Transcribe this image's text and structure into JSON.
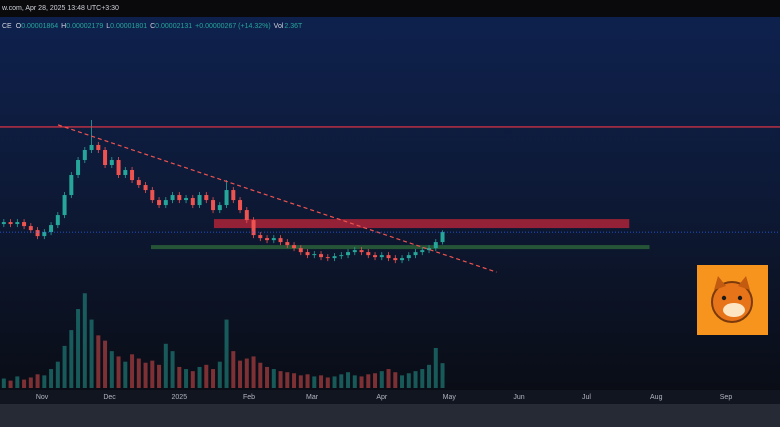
{
  "chart_data": {
    "type": "candlestick",
    "header": {
      "source": "w.com, Apr 28, 2025 13:48 UTC+3:30",
      "symbol": "CE",
      "items": [
        {
          "key": "O",
          "value": "0.00001864"
        },
        {
          "key": "H",
          "value": "0.00002179"
        },
        {
          "key": "L",
          "value": "0.00001801"
        },
        {
          "key": "C",
          "value": "0.00002131"
        }
      ],
      "change": "+0.00000267 (+14.32%)",
      "volume": {
        "key": "Vol",
        "value": "2.36T"
      }
    },
    "x": [
      -17,
      -14,
      -11,
      -8,
      -5,
      -2,
      1,
      4,
      7,
      10,
      13,
      16,
      19,
      22,
      25,
      28,
      31,
      34,
      37,
      40,
      43,
      46,
      49,
      52,
      55,
      58,
      61,
      64,
      67,
      70,
      73,
      76,
      79,
      82,
      85,
      88,
      91,
      94,
      97,
      100,
      103,
      106,
      109,
      112,
      115,
      118,
      121,
      124,
      127,
      130,
      133,
      136,
      139,
      142,
      145,
      148,
      151,
      154,
      157,
      160,
      163,
      166,
      169,
      172,
      175,
      178
    ],
    "open": [
      2.345e-05,
      2.398e-05,
      2.345e-05,
      2.398e-05,
      2.291e-05,
      2.184e-05,
      2.024e-05,
      2.131e-05,
      2.318e-05,
      2.585e-05,
      3.119e-05,
      3.653e-05,
      4.053e-05,
      4.32e-05,
      4.454e-05,
      4.32e-05,
      3.92e-05,
      4.053e-05,
      3.653e-05,
      3.786e-05,
      3.519e-05,
      3.386e-05,
      3.252e-05,
      2.985e-05,
      2.852e-05,
      2.985e-05,
      3.119e-05,
      2.985e-05,
      3.039e-05,
      2.852e-05,
      3.119e-05,
      2.985e-05,
      2.718e-05,
      2.852e-05,
      3.252e-05,
      2.985e-05,
      2.718e-05,
      2.451e-05,
      2.051e-05,
      1.971e-05,
      1.917e-05,
      1.971e-05,
      1.864e-05,
      1.784e-05,
      1.704e-05,
      1.597e-05,
      1.517e-05,
      1.544e-05,
      1.463e-05,
      1.437e-05,
      1.49e-05,
      1.517e-05,
      1.597e-05,
      1.65e-05,
      1.597e-05,
      1.517e-05,
      1.463e-05,
      1.517e-05,
      1.437e-05,
      1.383e-05,
      1.437e-05,
      1.517e-05,
      1.597e-05,
      1.65e-05,
      1.704e-05,
      1.864e-05
    ],
    "high": [
      2.478e-05,
      2.478e-05,
      2.478e-05,
      2.478e-05,
      2.371e-05,
      2.264e-05,
      2.211e-05,
      2.398e-05,
      2.665e-05,
      3.199e-05,
      3.733e-05,
      4.133e-05,
      4.4e-05,
      5.121e-05,
      4.534e-05,
      4.4e-05,
      4.133e-05,
      4.133e-05,
      3.866e-05,
      3.866e-05,
      3.599e-05,
      3.466e-05,
      3.332e-05,
      3.065e-05,
      3.065e-05,
      3.199e-05,
      3.199e-05,
      3.119e-05,
      3.119e-05,
      3.199e-05,
      3.199e-05,
      3.065e-05,
      2.932e-05,
      3.519e-05,
      3.332e-05,
      3.065e-05,
      2.798e-05,
      2.531e-05,
      2.131e-05,
      2.051e-05,
      2.051e-05,
      2.051e-05,
      1.944e-05,
      1.864e-05,
      1.784e-05,
      1.677e-05,
      1.624e-05,
      1.624e-05,
      1.543e-05,
      1.57e-05,
      1.597e-05,
      1.677e-05,
      1.73e-05,
      1.73e-05,
      1.677e-05,
      1.597e-05,
      1.597e-05,
      1.597e-05,
      1.517e-05,
      1.517e-05,
      1.597e-05,
      1.677e-05,
      1.73e-05,
      1.784e-05,
      1.944e-05,
      2.179e-05
    ],
    "low": [
      2.265e-05,
      2.265e-05,
      2.265e-05,
      2.211e-05,
      2.104e-05,
      1.944e-05,
      1.944e-05,
      2.051e-05,
      2.238e-05,
      2.505e-05,
      3.039e-05,
      3.573e-05,
      3.973e-05,
      4.24e-05,
      4.24e-05,
      3.84e-05,
      3.84e-05,
      3.573e-05,
      3.573e-05,
      3.439e-05,
      3.306e-05,
      3.172e-05,
      2.905e-05,
      2.772e-05,
      2.772e-05,
      2.905e-05,
      2.905e-05,
      2.905e-05,
      2.772e-05,
      2.772e-05,
      2.905e-05,
      2.638e-05,
      2.638e-05,
      2.772e-05,
      2.905e-05,
      2.638e-05,
      2.371e-05,
      1.971e-05,
      1.891e-05,
      1.837e-05,
      1.837e-05,
      1.784e-05,
      1.704e-05,
      1.624e-05,
      1.517e-05,
      1.437e-05,
      1.437e-05,
      1.383e-05,
      1.357e-05,
      1.357e-05,
      1.41e-05,
      1.437e-05,
      1.517e-05,
      1.517e-05,
      1.437e-05,
      1.383e-05,
      1.383e-05,
      1.357e-05,
      1.303e-05,
      1.303e-05,
      1.357e-05,
      1.437e-05,
      1.517e-05,
      1.57e-05,
      1.624e-05,
      1.801e-05
    ],
    "close": [
      2.398e-05,
      2.345e-05,
      2.398e-05,
      2.291e-05,
      2.184e-05,
      2.024e-05,
      2.131e-05,
      2.318e-05,
      2.585e-05,
      3.119e-05,
      3.653e-05,
      4.053e-05,
      4.32e-05,
      4.454e-05,
      4.32e-05,
      3.92e-05,
      4.053e-05,
      3.653e-05,
      3.786e-05,
      3.519e-05,
      3.386e-05,
      3.252e-05,
      2.985e-05,
      2.852e-05,
      2.985e-05,
      3.119e-05,
      2.985e-05,
      3.039e-05,
      2.852e-05,
      3.119e-05,
      2.985e-05,
      2.718e-05,
      2.852e-05,
      3.252e-05,
      2.985e-05,
      2.718e-05,
      2.451e-05,
      2.051e-05,
      1.971e-05,
      1.917e-05,
      1.971e-05,
      1.864e-05,
      1.784e-05,
      1.704e-05,
      1.597e-05,
      1.517e-05,
      1.544e-05,
      1.463e-05,
      1.437e-05,
      1.49e-05,
      1.517e-05,
      1.597e-05,
      1.65e-05,
      1.597e-05,
      1.517e-05,
      1.463e-05,
      1.517e-05,
      1.437e-05,
      1.383e-05,
      1.437e-05,
      1.517e-05,
      1.597e-05,
      1.65e-05,
      1.704e-05,
      1.864e-05,
      2.131e-05
    ],
    "volume": [
      0.9,
      0.7,
      1.1,
      0.8,
      1.0,
      1.3,
      1.2,
      1.8,
      2.5,
      4.0,
      5.5,
      7.5,
      9.0,
      6.5,
      5.0,
      4.5,
      3.5,
      3.0,
      2.5,
      3.2,
      2.8,
      2.4,
      2.6,
      2.2,
      4.2,
      3.5,
      2.0,
      1.8,
      1.6,
      2.0,
      2.2,
      1.8,
      2.5,
      6.5,
      3.5,
      2.6,
      2.8,
      3.0,
      2.4,
      2.0,
      1.8,
      1.6,
      1.5,
      1.4,
      1.2,
      1.3,
      1.1,
      1.2,
      1.0,
      1.1,
      1.3,
      1.5,
      1.2,
      1.1,
      1.3,
      1.4,
      1.6,
      1.8,
      1.5,
      1.2,
      1.4,
      1.6,
      1.8,
      2.2,
      3.8,
      2.36
    ],
    "up_color": "#26a69a",
    "down_color": "#ef5350",
    "xlim": [
      -18.7,
      328
    ],
    "ylim": [
      4e-06,
      8e-05
    ],
    "vlim": [
      0,
      9.5
    ],
    "xticks": [
      {
        "value": 0,
        "label": "Nov"
      },
      {
        "value": 30,
        "label": "Dec"
      },
      {
        "value": 61,
        "label": "2025"
      },
      {
        "value": 92,
        "label": "Feb"
      },
      {
        "value": 120,
        "label": "Mar"
      },
      {
        "value": 151,
        "label": "Apr"
      },
      {
        "value": 181,
        "label": "May"
      },
      {
        "value": 212,
        "label": "Jun"
      },
      {
        "value": 242,
        "label": "Jul"
      },
      {
        "value": 273,
        "label": "Aug"
      },
      {
        "value": 304,
        "label": "Sep"
      }
    ],
    "hline": {
      "y": 4.935e-05,
      "color": "#f23645"
    },
    "resistance_zone": {
      "x": [
        76.4,
        261
      ],
      "y": [
        2.238e-05,
        2.478e-05
      ],
      "color": "#c2263a"
    },
    "support_zone": {
      "x": [
        48.4,
        270
      ],
      "y": [
        1.677e-05,
        1.784e-05
      ],
      "color": "#2e6b3a"
    },
    "trendline": {
      "x": [
        7.1,
        202
      ],
      "y": [
        4.99e-05,
        1.063e-05
      ],
      "color": "#ef5350"
    },
    "price_line_color": "#2962ff"
  }
}
